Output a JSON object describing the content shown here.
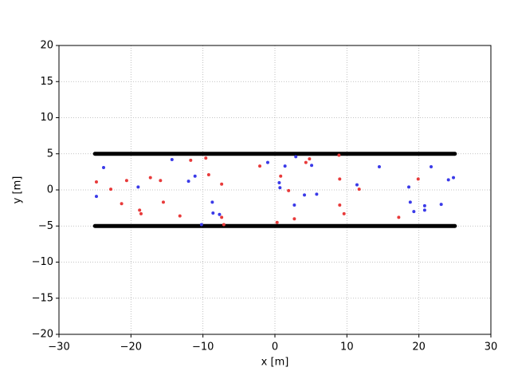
{
  "chart_data": {
    "type": "scatter",
    "xlabel": "x [m]",
    "ylabel": "y [m]",
    "xlim": [
      -30,
      30
    ],
    "ylim": [
      -20,
      20
    ],
    "xticks": [
      {
        "value": -30,
        "label": "−30"
      },
      {
        "value": -20,
        "label": "−20"
      },
      {
        "value": -10,
        "label": "−10"
      },
      0,
      10,
      20,
      30
    ],
    "yticks": [
      {
        "value": -20,
        "label": "−20"
      },
      {
        "value": -15,
        "label": "−15"
      },
      {
        "value": -10,
        "label": "−10"
      },
      {
        "value": -5,
        "label": "−5"
      },
      0,
      5,
      10,
      15,
      20
    ],
    "grid": true,
    "series": [
      {
        "type": "line",
        "color": "#000000",
        "x": [
          -25,
          25
        ],
        "values": [
          5,
          5
        ]
      },
      {
        "type": "line",
        "color": "#000000",
        "x": [
          -25,
          25
        ],
        "values": [
          -5,
          -5
        ]
      },
      {
        "color": "#e83a3a",
        "x": [
          -24.8,
          -22.8,
          -21.3,
          -20.6,
          -18.8,
          -18.6,
          -17.3,
          -15.9,
          -15.5,
          -13.2,
          -11.7,
          -9.6,
          -9.2,
          -7.4,
          -7.4,
          -7.1,
          -2.1,
          0.3,
          0.8,
          1.9,
          2.7,
          4.3,
          4.8,
          8.9,
          9.0,
          9.0,
          9.6,
          11.7,
          17.2,
          19.9
        ],
        "values": [
          1.1,
          0.1,
          -1.9,
          1.3,
          -2.8,
          -3.3,
          1.7,
          1.3,
          -1.7,
          -3.6,
          4.1,
          4.4,
          2.1,
          0.8,
          -3.8,
          -4.8,
          3.3,
          -4.5,
          1.9,
          -0.1,
          -4.0,
          3.8,
          4.3,
          4.8,
          1.5,
          -2.1,
          -3.3,
          0.1,
          -3.8,
          1.5
        ]
      },
      {
        "color": "#3a3ae8",
        "x": [
          -24.8,
          -23.8,
          -19.0,
          -14.3,
          -12.0,
          -11.1,
          -10.2,
          -8.7,
          -8.6,
          -7.7,
          -1.0,
          0.6,
          0.7,
          1.4,
          2.7,
          2.9,
          4.1,
          5.1,
          5.8,
          11.4,
          14.5,
          18.6,
          18.8,
          19.3,
          20.8,
          20.8,
          21.7,
          23.1,
          24.1,
          24.8
        ],
        "values": [
          -0.9,
          3.1,
          0.4,
          4.2,
          1.2,
          1.9,
          -4.8,
          -1.7,
          -3.2,
          -3.4,
          3.8,
          1.0,
          0.3,
          3.3,
          -2.1,
          4.6,
          -0.7,
          3.4,
          -0.6,
          0.7,
          3.2,
          0.4,
          -1.7,
          -3.0,
          -2.2,
          -2.8,
          3.2,
          -2.0,
          1.4,
          1.7
        ]
      }
    ]
  }
}
